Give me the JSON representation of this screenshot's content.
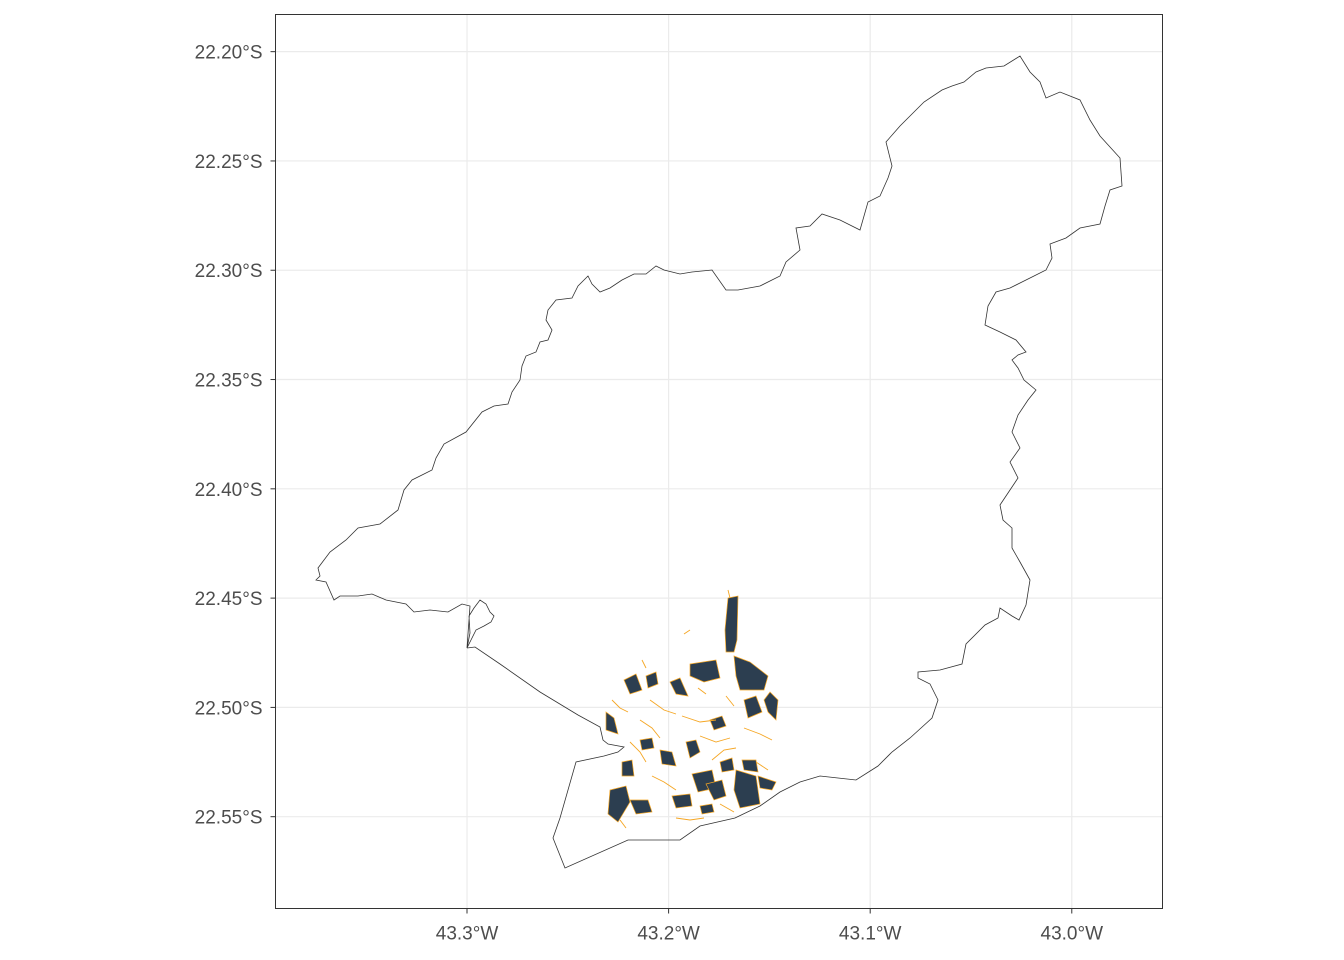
{
  "map": {
    "x_axis": {
      "range": [
        -43.395,
        -42.955
      ],
      "ticks": [
        {
          "value": -43.3,
          "label": "43.3°W"
        },
        {
          "value": -43.2,
          "label": "43.2°W"
        },
        {
          "value": -43.1,
          "label": "43.1°W"
        },
        {
          "value": -43.0,
          "label": "43.0°W"
        }
      ]
    },
    "y_axis": {
      "range": [
        -22.592,
        -22.183
      ],
      "ticks": [
        {
          "value": -22.2,
          "label": "22.20°S"
        },
        {
          "value": -22.25,
          "label": "22.25°S"
        },
        {
          "value": -22.3,
          "label": "22.30°S"
        },
        {
          "value": -22.35,
          "label": "22.35°S"
        },
        {
          "value": -22.4,
          "label": "22.40°S"
        },
        {
          "value": -22.45,
          "label": "22.45°S"
        },
        {
          "value": -22.5,
          "label": "22.50°S"
        },
        {
          "value": -22.55,
          "label": "22.55°S"
        }
      ]
    },
    "grid": true,
    "colors": {
      "fill": "#2c3e50",
      "highlight": "#f5a623",
      "outline": "#333333",
      "grid": "#ebebeb",
      "panel_border": "#333333",
      "tick_text": "#4d4d4d"
    }
  }
}
